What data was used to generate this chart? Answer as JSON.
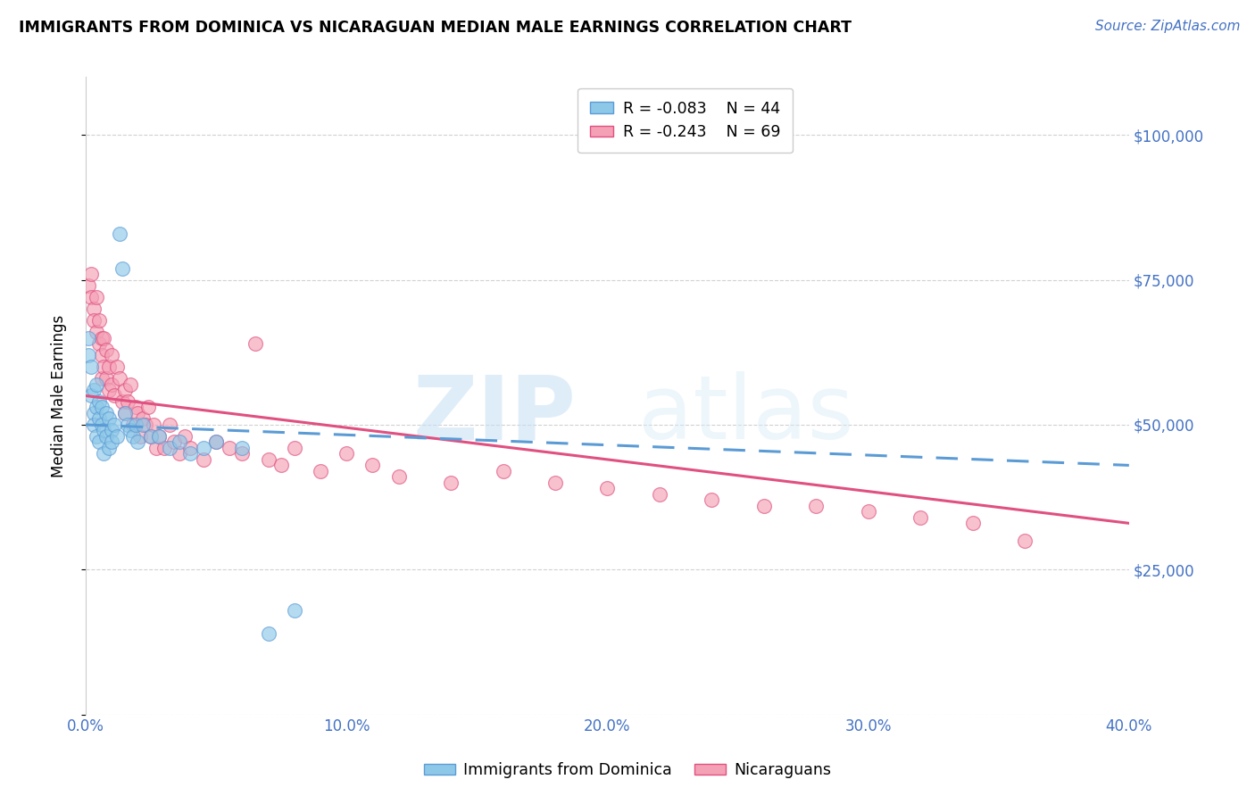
{
  "title": "IMMIGRANTS FROM DOMINICA VS NICARAGUAN MEDIAN MALE EARNINGS CORRELATION CHART",
  "source": "Source: ZipAtlas.com",
  "ylabel": "Median Male Earnings",
  "xlim": [
    0.0,
    0.4
  ],
  "ylim": [
    0,
    110000
  ],
  "legend_r1": "R = -0.083",
  "legend_n1": "N = 44",
  "legend_r2": "R = -0.243",
  "legend_n2": "N = 69",
  "color_blue": "#8ec8e8",
  "color_pink": "#f4a0b5",
  "color_blue_line": "#5b9bd5",
  "color_pink_line": "#e05080",
  "color_axis_labels": "#4472c4",
  "watermark_zip": "ZIP",
  "watermark_atlas": "atlas",
  "blue_x": [
    0.001,
    0.001,
    0.002,
    0.002,
    0.003,
    0.003,
    0.003,
    0.004,
    0.004,
    0.004,
    0.005,
    0.005,
    0.005,
    0.006,
    0.006,
    0.007,
    0.007,
    0.008,
    0.008,
    0.009,
    0.009,
    0.01,
    0.01,
    0.011,
    0.012,
    0.013,
    0.014,
    0.015,
    0.016,
    0.017,
    0.018,
    0.019,
    0.02,
    0.022,
    0.025,
    0.028,
    0.032,
    0.036,
    0.04,
    0.045,
    0.05,
    0.06,
    0.07,
    0.08
  ],
  "blue_y": [
    62000,
    65000,
    55000,
    60000,
    52000,
    56000,
    50000,
    53000,
    57000,
    48000,
    51000,
    54000,
    47000,
    50000,
    53000,
    49000,
    45000,
    52000,
    48000,
    51000,
    46000,
    49000,
    47000,
    50000,
    48000,
    83000,
    77000,
    52000,
    50000,
    49000,
    48000,
    50000,
    47000,
    50000,
    48000,
    48000,
    46000,
    47000,
    45000,
    46000,
    47000,
    46000,
    14000,
    18000
  ],
  "pink_x": [
    0.001,
    0.002,
    0.002,
    0.003,
    0.003,
    0.004,
    0.004,
    0.005,
    0.005,
    0.006,
    0.006,
    0.006,
    0.007,
    0.007,
    0.008,
    0.008,
    0.009,
    0.009,
    0.01,
    0.01,
    0.011,
    0.012,
    0.013,
    0.014,
    0.015,
    0.015,
    0.016,
    0.017,
    0.018,
    0.019,
    0.02,
    0.021,
    0.022,
    0.023,
    0.024,
    0.025,
    0.026,
    0.027,
    0.028,
    0.03,
    0.032,
    0.034,
    0.036,
    0.038,
    0.04,
    0.045,
    0.05,
    0.055,
    0.06,
    0.065,
    0.07,
    0.075,
    0.08,
    0.09,
    0.1,
    0.11,
    0.12,
    0.14,
    0.16,
    0.18,
    0.2,
    0.22,
    0.24,
    0.26,
    0.28,
    0.3,
    0.32,
    0.34,
    0.36
  ],
  "pink_y": [
    74000,
    76000,
    72000,
    70000,
    68000,
    66000,
    72000,
    64000,
    68000,
    65000,
    62000,
    58000,
    65000,
    60000,
    58000,
    63000,
    56000,
    60000,
    62000,
    57000,
    55000,
    60000,
    58000,
    54000,
    56000,
    52000,
    54000,
    57000,
    50000,
    53000,
    52000,
    48000,
    51000,
    50000,
    53000,
    48000,
    50000,
    46000,
    48000,
    46000,
    50000,
    47000,
    45000,
    48000,
    46000,
    44000,
    47000,
    46000,
    45000,
    64000,
    44000,
    43000,
    46000,
    42000,
    45000,
    43000,
    41000,
    40000,
    42000,
    40000,
    39000,
    38000,
    37000,
    36000,
    36000,
    35000,
    34000,
    33000,
    30000
  ],
  "blue_trend_x": [
    0.0,
    0.4
  ],
  "blue_trend_y": [
    50000,
    43000
  ],
  "pink_trend_x": [
    0.0,
    0.4
  ],
  "pink_trend_y": [
    55000,
    33000
  ]
}
